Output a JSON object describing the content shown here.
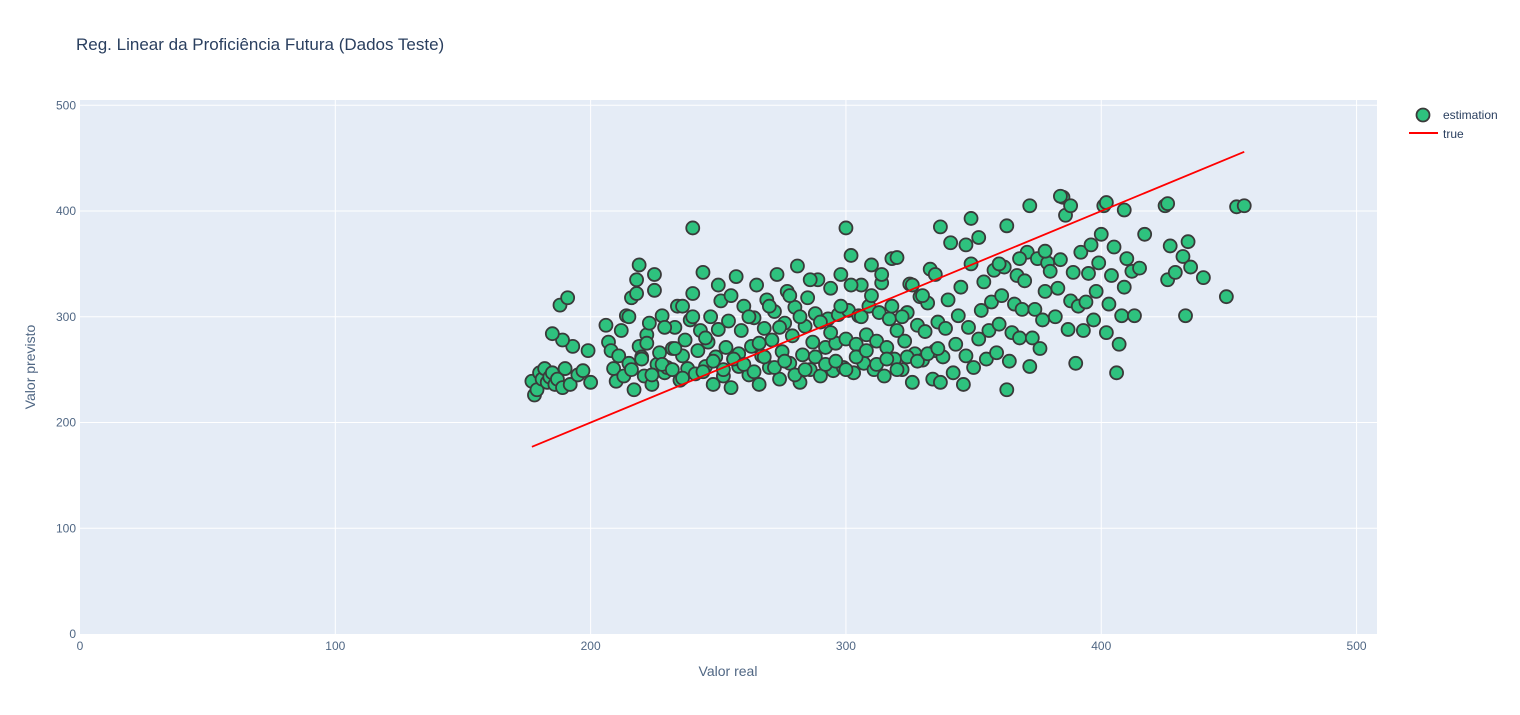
{
  "chart_data": {
    "type": "scatter",
    "title": "Reg. Linear da Proficiência Futura (Dados Teste)",
    "xlabel": "Valor real",
    "ylabel": "Valor previsto",
    "xlim": [
      0,
      508
    ],
    "ylim": [
      0,
      505
    ],
    "x_ticks": [
      0,
      100,
      200,
      300,
      400,
      500
    ],
    "y_ticks": [
      0,
      100,
      200,
      300,
      400,
      500
    ],
    "grid": true,
    "legend_position": "top-right",
    "colors": {
      "plot_background": "#e5ecf6",
      "grid": "#ffffff",
      "marker_fill": "#2ec27e",
      "marker_edge": "#3a3a3a",
      "line": "#ff0000"
    },
    "series": [
      {
        "name": "estimation",
        "mode": "markers",
        "x": [
          177,
          178,
          179,
          180,
          181,
          182,
          183,
          184,
          185,
          186,
          187,
          188,
          189,
          190,
          191,
          192,
          193,
          195,
          197,
          199,
          200,
          206,
          207,
          208,
          209,
          210,
          211,
          212,
          213,
          214,
          215,
          216,
          217,
          218,
          219,
          219,
          220,
          221,
          222,
          223,
          224,
          225,
          226,
          227,
          228,
          229,
          230,
          232,
          233,
          234,
          235,
          236,
          237,
          238,
          239,
          240,
          241,
          242,
          243,
          244,
          245,
          246,
          247,
          248,
          249,
          250,
          251,
          252,
          253,
          254,
          255,
          256,
          257,
          258,
          259,
          260,
          262,
          263,
          264,
          265,
          266,
          267,
          268,
          269,
          270,
          271,
          272,
          273,
          274,
          275,
          276,
          277,
          278,
          279,
          280,
          281,
          282,
          283,
          284,
          285,
          286,
          287,
          288,
          289,
          290,
          292,
          293,
          294,
          295,
          296,
          297,
          298,
          299,
          300,
          301,
          302,
          303,
          304,
          305,
          306,
          307,
          308,
          309,
          310,
          311,
          312,
          313,
          314,
          315,
          316,
          317,
          318,
          319,
          320,
          322,
          323,
          324,
          325,
          326,
          327,
          328,
          329,
          330,
          331,
          332,
          333,
          334,
          335,
          336,
          337,
          338,
          339,
          340,
          341,
          342,
          343,
          344,
          345,
          346,
          347,
          348,
          349,
          350,
          352,
          353,
          354,
          355,
          356,
          357,
          358,
          359,
          360,
          361,
          362,
          363,
          364,
          365,
          366,
          367,
          368,
          369,
          370,
          371,
          372,
          373,
          374,
          375,
          376,
          377,
          378,
          379,
          380,
          382,
          383,
          384,
          385,
          386,
          387,
          388,
          389,
          390,
          391,
          392,
          393,
          394,
          395,
          396,
          397,
          398,
          399,
          400,
          401,
          402,
          403,
          404,
          405,
          406,
          407,
          408,
          409,
          410,
          412,
          413,
          415,
          417,
          425,
          426,
          427,
          429,
          432,
          433,
          434,
          435,
          440,
          449,
          453,
          456,
          215,
          218,
          222,
          225,
          229,
          233,
          236,
          240,
          245,
          250,
          255,
          258,
          262,
          266,
          270,
          274,
          278,
          282,
          286,
          290,
          294,
          298,
          302,
          306,
          310,
          314,
          318,
          322,
          326,
          330,
          216,
          220,
          224,
          228,
          232,
          236,
          244,
          248,
          252,
          256,
          260,
          264,
          268,
          272,
          276,
          280,
          284,
          288,
          292,
          296,
          300,
          304,
          308,
          312,
          316,
          320,
          324,
          328,
          332,
          336,
          240,
          300,
          337,
          349,
          352,
          384,
          388,
          426,
          402,
          409,
          189,
          185,
          363,
          347,
          320,
          335,
          360,
          368,
          372,
          378
        ],
        "y": [
          239,
          226,
          231,
          247,
          241,
          251,
          238,
          243,
          247,
          236,
          241,
          311,
          233,
          251,
          318,
          236,
          272,
          245,
          249,
          268,
          238,
          292,
          276,
          268,
          251,
          239,
          263,
          287,
          244,
          301,
          256,
          318,
          231,
          335,
          349,
          272,
          262,
          244,
          283,
          294,
          236,
          340,
          255,
          266,
          301,
          247,
          252,
          270,
          290,
          310,
          240,
          263,
          278,
          251,
          297,
          322,
          246,
          268,
          287,
          342,
          253,
          276,
          300,
          236,
          262,
          288,
          315,
          244,
          271,
          296,
          233,
          260,
          338,
          253,
          287,
          310,
          245,
          272,
          299,
          330,
          236,
          263,
          289,
          316,
          252,
          278,
          305,
          340,
          241,
          267,
          294,
          324,
          256,
          282,
          309,
          348,
          238,
          264,
          291,
          318,
          250,
          276,
          303,
          335,
          244,
          271,
          298,
          327,
          249,
          275,
          302,
          340,
          252,
          279,
          306,
          358,
          247,
          274,
          301,
          330,
          256,
          283,
          310,
          349,
          250,
          277,
          304,
          332,
          244,
          271,
          298,
          355,
          260,
          287,
          250,
          277,
          304,
          331,
          238,
          265,
          292,
          319,
          259,
          286,
          313,
          345,
          241,
          268,
          295,
          385,
          262,
          289,
          316,
          370,
          247,
          274,
          301,
          328,
          236,
          263,
          290,
          393,
          252,
          279,
          306,
          333,
          260,
          287,
          314,
          344,
          266,
          293,
          320,
          347,
          231,
          258,
          285,
          312,
          339,
          280,
          307,
          334,
          361,
          253,
          280,
          307,
          355,
          270,
          297,
          324,
          351,
          343,
          300,
          327,
          354,
          413,
          396,
          288,
          315,
          342,
          256,
          310,
          361,
          287,
          314,
          341,
          368,
          297,
          324,
          351,
          378,
          405,
          285,
          312,
          339,
          366,
          247,
          274,
          301,
          328,
          355,
          343,
          301,
          346,
          378,
          405,
          335,
          367,
          342,
          357,
          301,
          371,
          347,
          337,
          319,
          404,
          405,
          300,
          322,
          275,
          325,
          290,
          270,
          310,
          300,
          280,
          330,
          320,
          265,
          300,
          275,
          310,
          290,
          320,
          300,
          335,
          295,
          285,
          310,
          330,
          300,
          320,
          340,
          310,
          300,
          330,
          320,
          250,
          260,
          245,
          255,
          250,
          242,
          248,
          258,
          250,
          260,
          255,
          248,
          262,
          252,
          258,
          245,
          250,
          262,
          255,
          258,
          250,
          262,
          268,
          255,
          260,
          250,
          262,
          258,
          265,
          270,
          384,
          384,
          238,
          350,
          375,
          414,
          405,
          407,
          408,
          401,
          278,
          284,
          386,
          368,
          356,
          340,
          350,
          355,
          405,
          362
        ]
      },
      {
        "name": "true",
        "mode": "lines",
        "x": [
          177,
          456
        ],
        "y": [
          177,
          456
        ]
      }
    ]
  }
}
